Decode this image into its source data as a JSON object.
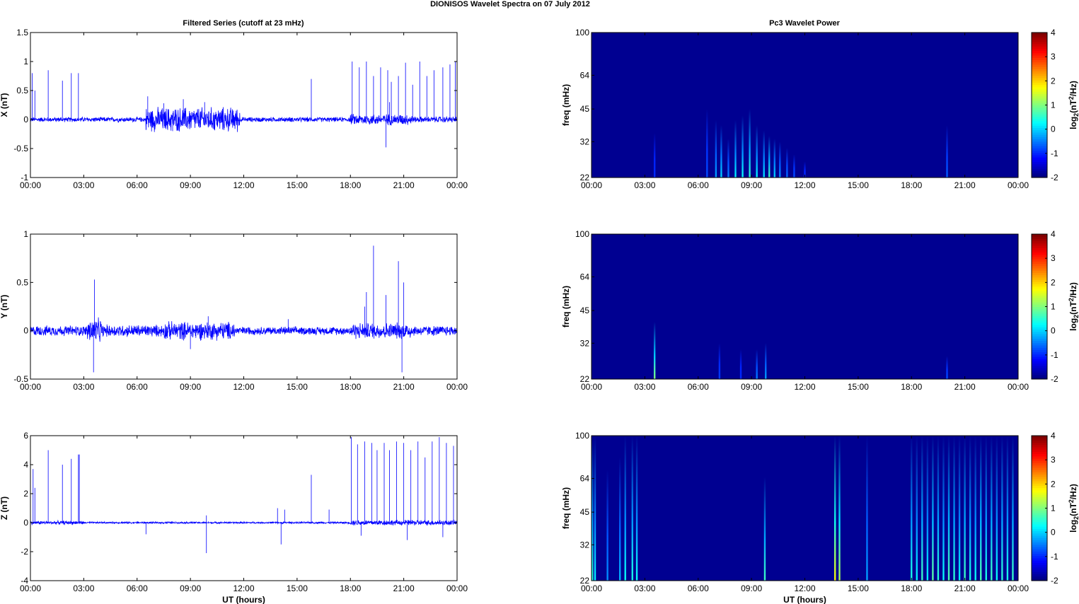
{
  "figure": {
    "title": "DIONISOS Wavelet Spectra on 07 July      2012",
    "left_title": "Filtered Series (cutoff at 23 mHz)",
    "right_title": "Pc3 Wavelet Power",
    "xlabel": "UT (hours)",
    "time_ticks": [
      "00:00",
      "03:00",
      "06:00",
      "09:00",
      "12:00",
      "15:00",
      "18:00",
      "21:00",
      "00:00"
    ],
    "colorbar_label": "log2(nT2/Hz)",
    "colorbar_ticks": [
      "4",
      "3",
      "2",
      "1",
      "0",
      "-1",
      "-2"
    ],
    "freq_ylabel": "freq (mHz)",
    "freq_ticks": [
      "100",
      "64",
      "45",
      "32",
      "22"
    ]
  },
  "chart_data": [
    {
      "type": "line",
      "panel": "X",
      "ylabel": "X (nT)",
      "ylim": [
        -1,
        1.5
      ],
      "yticks": [
        "1.5",
        "1",
        "0.5",
        "0",
        "-0.5",
        "-1"
      ],
      "color": "#0000ff",
      "xlim_hours": [
        0,
        24
      ],
      "noise_envelope": [
        {
          "from": 0,
          "to": 6.5,
          "amp": 0.04
        },
        {
          "from": 6.5,
          "to": 11.8,
          "amp": 0.2
        },
        {
          "from": 11.8,
          "to": 18,
          "amp": 0.04
        },
        {
          "from": 18,
          "to": 21.5,
          "amp": 0.09
        },
        {
          "from": 21.5,
          "to": 24,
          "amp": 0.05
        }
      ],
      "spikes": [
        {
          "t": 0.1,
          "v": 0.8
        },
        {
          "t": 0.25,
          "v": 0.5
        },
        {
          "t": 1.0,
          "v": 0.85
        },
        {
          "t": 1.8,
          "v": 0.67
        },
        {
          "t": 2.3,
          "v": 0.8
        },
        {
          "t": 2.7,
          "v": 0.8
        },
        {
          "t": 6.6,
          "v": 0.4
        },
        {
          "t": 7.5,
          "v": 0.28
        },
        {
          "t": 8.6,
          "v": 0.35
        },
        {
          "t": 9.8,
          "v": 0.3
        },
        {
          "t": 15.8,
          "v": 0.7
        },
        {
          "t": 18.1,
          "v": 1.0
        },
        {
          "t": 18.5,
          "v": 0.9
        },
        {
          "t": 18.9,
          "v": 1.0
        },
        {
          "t": 19.3,
          "v": 0.75
        },
        {
          "t": 19.7,
          "v": 0.9
        },
        {
          "t": 20.1,
          "v": 0.85
        },
        {
          "t": 20.3,
          "v": 0.65
        },
        {
          "t": 20.7,
          "v": 0.75
        },
        {
          "t": 21.1,
          "v": 0.98
        },
        {
          "t": 21.5,
          "v": 0.6
        },
        {
          "t": 21.9,
          "v": 1.0
        },
        {
          "t": 22.3,
          "v": 0.75
        },
        {
          "t": 22.7,
          "v": 0.85
        },
        {
          "t": 23.2,
          "v": 0.9
        },
        {
          "t": 23.6,
          "v": 0.95
        },
        {
          "t": 23.9,
          "v": 1.0
        },
        {
          "t": 20.0,
          "v": -0.48
        },
        {
          "t": 20.2,
          "v": 0.3
        },
        {
          "t": 6.5,
          "v": -0.18
        },
        {
          "t": 8.0,
          "v": -0.2
        }
      ]
    },
    {
      "type": "line",
      "panel": "Y",
      "ylabel": "Y (nT)",
      "ylim": [
        -0.5,
        1
      ],
      "yticks": [
        "1",
        "0.5",
        "0",
        "-0.5"
      ],
      "color": "#0000ff",
      "xlim_hours": [
        0,
        24
      ],
      "noise_envelope": [
        {
          "from": 0,
          "to": 3.2,
          "amp": 0.05
        },
        {
          "from": 3.2,
          "to": 4.0,
          "amp": 0.12
        },
        {
          "from": 4.0,
          "to": 7.5,
          "amp": 0.06
        },
        {
          "from": 7.5,
          "to": 11.5,
          "amp": 0.09
        },
        {
          "from": 11.5,
          "to": 18,
          "amp": 0.04
        },
        {
          "from": 18,
          "to": 21.5,
          "amp": 0.08
        },
        {
          "from": 21.5,
          "to": 24,
          "amp": 0.05
        }
      ],
      "spikes": [
        {
          "t": 3.6,
          "v": 0.53
        },
        {
          "t": 3.55,
          "v": -0.43
        },
        {
          "t": 14.5,
          "v": 0.12
        },
        {
          "t": 18.8,
          "v": 0.25
        },
        {
          "t": 18.9,
          "v": 0.4
        },
        {
          "t": 19.3,
          "v": 0.88
        },
        {
          "t": 20.0,
          "v": 0.37
        },
        {
          "t": 20.7,
          "v": 0.72
        },
        {
          "t": 20.9,
          "v": -0.43
        },
        {
          "t": 21.0,
          "v": 0.5
        },
        {
          "t": 9.0,
          "v": -0.19
        },
        {
          "t": 10.0,
          "v": 0.15
        }
      ]
    },
    {
      "type": "line",
      "panel": "Z",
      "ylabel": "Z (nT)",
      "ylim": [
        -4,
        6
      ],
      "yticks": [
        "6",
        "4",
        "2",
        "0",
        "-2",
        "-4"
      ],
      "color": "#0000ff",
      "xlim_hours": [
        0,
        24
      ],
      "noise_envelope": [
        {
          "from": 0,
          "to": 3,
          "amp": 0.12
        },
        {
          "from": 3,
          "to": 18,
          "amp": 0.06
        },
        {
          "from": 18,
          "to": 24,
          "amp": 0.18
        }
      ],
      "spikes": [
        {
          "t": 0.15,
          "v": 3.7
        },
        {
          "t": 0.25,
          "v": 2.4
        },
        {
          "t": 1.0,
          "v": 5.0
        },
        {
          "t": 1.8,
          "v": 4.0
        },
        {
          "t": 2.3,
          "v": 4.4
        },
        {
          "t": 2.7,
          "v": 4.7
        },
        {
          "t": 2.75,
          "v": 4.7
        },
        {
          "t": 6.5,
          "v": -0.8
        },
        {
          "t": 9.9,
          "v": -2.1
        },
        {
          "t": 9.9,
          "v": 0.5
        },
        {
          "t": 13.9,
          "v": 1.0
        },
        {
          "t": 14.1,
          "v": -1.5
        },
        {
          "t": 14.3,
          "v": 0.9
        },
        {
          "t": 15.8,
          "v": 3.3
        },
        {
          "t": 16.8,
          "v": 0.9
        },
        {
          "t": 18.05,
          "v": 5.9
        },
        {
          "t": 18.4,
          "v": 5.4
        },
        {
          "t": 18.8,
          "v": 5.6
        },
        {
          "t": 19.2,
          "v": 5.5
        },
        {
          "t": 19.5,
          "v": 5.0
        },
        {
          "t": 19.9,
          "v": 5.5
        },
        {
          "t": 20.2,
          "v": 5.0
        },
        {
          "t": 20.6,
          "v": 5.6
        },
        {
          "t": 21.0,
          "v": 5.5
        },
        {
          "t": 21.4,
          "v": 5.0
        },
        {
          "t": 21.8,
          "v": 5.6
        },
        {
          "t": 22.2,
          "v": 4.5
        },
        {
          "t": 22.6,
          "v": 5.6
        },
        {
          "t": 23.0,
          "v": 5.9
        },
        {
          "t": 23.4,
          "v": 5.5
        },
        {
          "t": 23.8,
          "v": 5.3
        },
        {
          "t": 21.2,
          "v": -1.2
        },
        {
          "t": 18.6,
          "v": -0.9
        },
        {
          "t": 23.2,
          "v": -1.0
        }
      ]
    },
    {
      "type": "heatmap",
      "panel": "X-spectrum",
      "colormap": "jet",
      "clim": [
        -2,
        4
      ],
      "background": -1.9,
      "ylim_mHz": [
        22,
        100
      ],
      "bursts": [
        {
          "t": 3.55,
          "v": -1.0,
          "fmax": 35
        },
        {
          "t": 6.5,
          "v": -0.8,
          "fmax": 45
        },
        {
          "t": 7.0,
          "v": -0.3,
          "fmax": 40
        },
        {
          "t": 7.3,
          "v": 0.0,
          "fmax": 38
        },
        {
          "t": 7.7,
          "v": -0.5,
          "fmax": 33
        },
        {
          "t": 8.1,
          "v": 0.2,
          "fmax": 40
        },
        {
          "t": 8.5,
          "v": 0.3,
          "fmax": 42
        },
        {
          "t": 8.9,
          "v": 0.5,
          "fmax": 45
        },
        {
          "t": 9.3,
          "v": 0.2,
          "fmax": 38
        },
        {
          "t": 9.7,
          "v": 0.1,
          "fmax": 36
        },
        {
          "t": 10.0,
          "v": 0.6,
          "fmax": 34
        },
        {
          "t": 10.3,
          "v": 0.0,
          "fmax": 33
        },
        {
          "t": 10.6,
          "v": -0.4,
          "fmax": 32
        },
        {
          "t": 11.0,
          "v": -0.6,
          "fmax": 30
        },
        {
          "t": 11.4,
          "v": -0.8,
          "fmax": 28
        },
        {
          "t": 12.0,
          "v": -1.0,
          "fmax": 26
        },
        {
          "t": 20.0,
          "v": -0.7,
          "fmax": 38
        }
      ]
    },
    {
      "type": "heatmap",
      "panel": "Y-spectrum",
      "colormap": "jet",
      "clim": [
        -2,
        4
      ],
      "background": -1.9,
      "ylim_mHz": [
        22,
        100
      ],
      "bursts": [
        {
          "t": 3.55,
          "v": 1.0,
          "fmax": 40
        },
        {
          "t": 7.2,
          "v": -0.9,
          "fmax": 32
        },
        {
          "t": 8.4,
          "v": -1.0,
          "fmax": 30
        },
        {
          "t": 9.3,
          "v": -0.5,
          "fmax": 30
        },
        {
          "t": 9.8,
          "v": -0.3,
          "fmax": 32
        },
        {
          "t": 20.0,
          "v": -0.8,
          "fmax": 28
        }
      ]
    },
    {
      "type": "heatmap",
      "panel": "Z-spectrum",
      "colormap": "jet",
      "clim": [
        -2,
        4
      ],
      "background": -1.9,
      "ylim_mHz": [
        22,
        100
      ],
      "bursts": [
        {
          "t": 0.05,
          "v": 0.5,
          "fmax": 100
        },
        {
          "t": 0.2,
          "v": 0.2,
          "fmax": 100
        },
        {
          "t": 0.9,
          "v": -0.4,
          "fmax": 70
        },
        {
          "t": 1.6,
          "v": -0.2,
          "fmax": 80
        },
        {
          "t": 1.9,
          "v": 0.3,
          "fmax": 100
        },
        {
          "t": 2.3,
          "v": 0.4,
          "fmax": 100
        },
        {
          "t": 2.55,
          "v": 0.3,
          "fmax": 100
        },
        {
          "t": 9.75,
          "v": 0.6,
          "fmax": 65
        },
        {
          "t": 13.7,
          "v": 1.8,
          "fmax": 100
        },
        {
          "t": 13.95,
          "v": 1.3,
          "fmax": 100
        },
        {
          "t": 15.5,
          "v": -0.3,
          "fmax": 100
        },
        {
          "t": 18.0,
          "v": 0.4,
          "fmax": 100
        },
        {
          "t": 18.3,
          "v": 0.2,
          "fmax": 100
        },
        {
          "t": 18.6,
          "v": 0.6,
          "fmax": 100
        },
        {
          "t": 18.9,
          "v": 0.2,
          "fmax": 100
        },
        {
          "t": 19.2,
          "v": 0.8,
          "fmax": 100
        },
        {
          "t": 19.5,
          "v": 0.5,
          "fmax": 100
        },
        {
          "t": 19.8,
          "v": 0.3,
          "fmax": 100
        },
        {
          "t": 20.1,
          "v": 0.7,
          "fmax": 100
        },
        {
          "t": 20.4,
          "v": 0.5,
          "fmax": 100
        },
        {
          "t": 20.7,
          "v": 0.2,
          "fmax": 100
        },
        {
          "t": 21.0,
          "v": 0.6,
          "fmax": 100
        },
        {
          "t": 21.3,
          "v": 0.4,
          "fmax": 100
        },
        {
          "t": 21.6,
          "v": 0.3,
          "fmax": 100
        },
        {
          "t": 21.9,
          "v": 0.7,
          "fmax": 100
        },
        {
          "t": 22.2,
          "v": 0.4,
          "fmax": 100
        },
        {
          "t": 22.5,
          "v": 0.6,
          "fmax": 100
        },
        {
          "t": 22.8,
          "v": 0.3,
          "fmax": 100
        },
        {
          "t": 23.1,
          "v": 0.5,
          "fmax": 100
        },
        {
          "t": 23.4,
          "v": 0.4,
          "fmax": 100
        },
        {
          "t": 23.7,
          "v": 0.6,
          "fmax": 100
        }
      ]
    }
  ]
}
